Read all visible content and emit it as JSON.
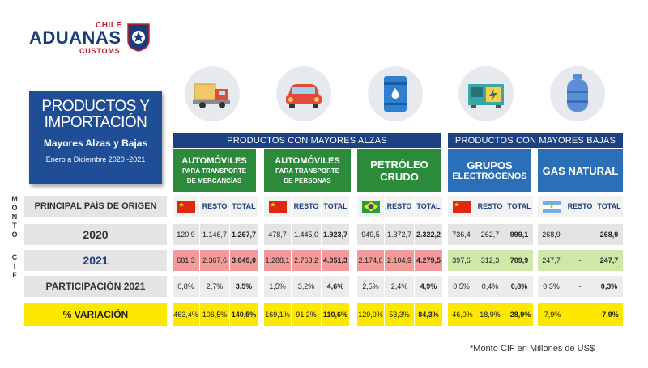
{
  "logo": {
    "chile": "CHILE",
    "aduanas": "ADUANAS",
    "customs": "CUSTOMS"
  },
  "title": {
    "line1": "PRODUCTOS Y",
    "line2": "IMPORTACIÓN",
    "line3": "Mayores Alzas y Bajas",
    "line4": "Enero a Diciembre 2020 -2021"
  },
  "sections": {
    "alzas": "PRODUCTOS CON MAYORES ALZAS",
    "bajas": "PRODUCTOS CON MAYORES BAJAS"
  },
  "side_labels": {
    "monto": [
      "M",
      "O",
      "N",
      "T",
      "O"
    ],
    "cif": [
      "C",
      "I",
      "F"
    ]
  },
  "row_labels": {
    "origen": "PRINCIPAL PAÍS DE ORIGEN",
    "y2020": "2020",
    "y2021": "2021",
    "participacion": "PARTICIPACIÓN 2021",
    "variacion": "% VARIACIÓN"
  },
  "col_labels": {
    "resto": "RESTO",
    "total": "TOTAL"
  },
  "products": [
    {
      "name_l1": "AUTOMÓVILES",
      "name_l2": "PARA TRANSPORTE",
      "name_l3": "DE MERCANCÍAS",
      "icon": "truck-icon",
      "origin_flag": "china-flag"
    },
    {
      "name_l1": "AUTOMÓVILES",
      "name_l2": "PARA TRANSPORTE",
      "name_l3": "DE PERSONAS",
      "icon": "car-icon",
      "origin_flag": "china-flag"
    },
    {
      "name_l1": "PETRÓLEO",
      "name_l2": "CRUDO",
      "name_l3": "",
      "icon": "oil-barrel-icon",
      "origin_flag": "brazil-flag"
    },
    {
      "name_l1": "GRUPOS",
      "name_l2": "ELECTRÓGENOS",
      "name_l3": "",
      "icon": "generator-icon",
      "origin_flag": "china-flag"
    },
    {
      "name_l1": "GAS NATURAL",
      "name_l2": "",
      "name_l3": "",
      "icon": "gas-cylinder-icon",
      "origin_flag": "argentina-flag"
    }
  ],
  "chart_data": {
    "type": "table",
    "columns": [
      "País principal",
      "Resto",
      "Total"
    ],
    "rows": [
      {
        "product": "Automóviles para transporte de mercancías",
        "y2020": [
          "120,9",
          "1.146,7",
          "1.267,7"
        ],
        "y2021": [
          "681,3",
          "2.367,6",
          "3.049,0"
        ],
        "participacion": [
          "0,8%",
          "2,7%",
          "3,5%"
        ],
        "variacion": [
          "463,4%",
          "106,5%",
          "140,5%"
        ]
      },
      {
        "product": "Automóviles para transporte de personas",
        "y2020": [
          "478,7",
          "1.445,0",
          "1.923,7"
        ],
        "y2021": [
          "1.288,1",
          "2.763,2",
          "4.051,3"
        ],
        "participacion": [
          "1,5%",
          "3,2%",
          "4,6%"
        ],
        "variacion": [
          "169,1%",
          "91,2%",
          "110,6%"
        ]
      },
      {
        "product": "Petróleo crudo",
        "y2020": [
          "949,5",
          "1.372,7",
          "2.322,2"
        ],
        "y2021": [
          "2.174,6",
          "2.104,9",
          "4.279,5"
        ],
        "participacion": [
          "2,5%",
          "2,4%",
          "4,9%"
        ],
        "variacion": [
          "129,0%",
          "53,3%",
          "84,3%"
        ]
      },
      {
        "product": "Grupos electrógenos",
        "y2020": [
          "736,4",
          "262,7",
          "999,1"
        ],
        "y2021": [
          "397,6",
          "312,3",
          "709,9"
        ],
        "participacion": [
          "0,5%",
          "0,4%",
          "0,8%"
        ],
        "variacion": [
          "-46,0%",
          "18,9%",
          "-28,9%"
        ]
      },
      {
        "product": "Gas natural",
        "y2020": [
          "268,9",
          "-",
          "268,9"
        ],
        "y2021": [
          "247,7",
          "-",
          "247,7"
        ],
        "participacion": [
          "0,3%",
          "-",
          "0,3%"
        ],
        "variacion": [
          "-7,9%",
          "-",
          "-7,9%"
        ]
      }
    ]
  },
  "footnote": "*Monto CIF en Millones de US$",
  "colors": {
    "navy": "#1c4082",
    "green": "#2b8b3b",
    "blue": "#2a6fb8",
    "row2020": "#e4e4e4",
    "row2021_up": "#f39b9b",
    "row2021_down": "#cfe8a8",
    "variacion": "#ffe800"
  }
}
